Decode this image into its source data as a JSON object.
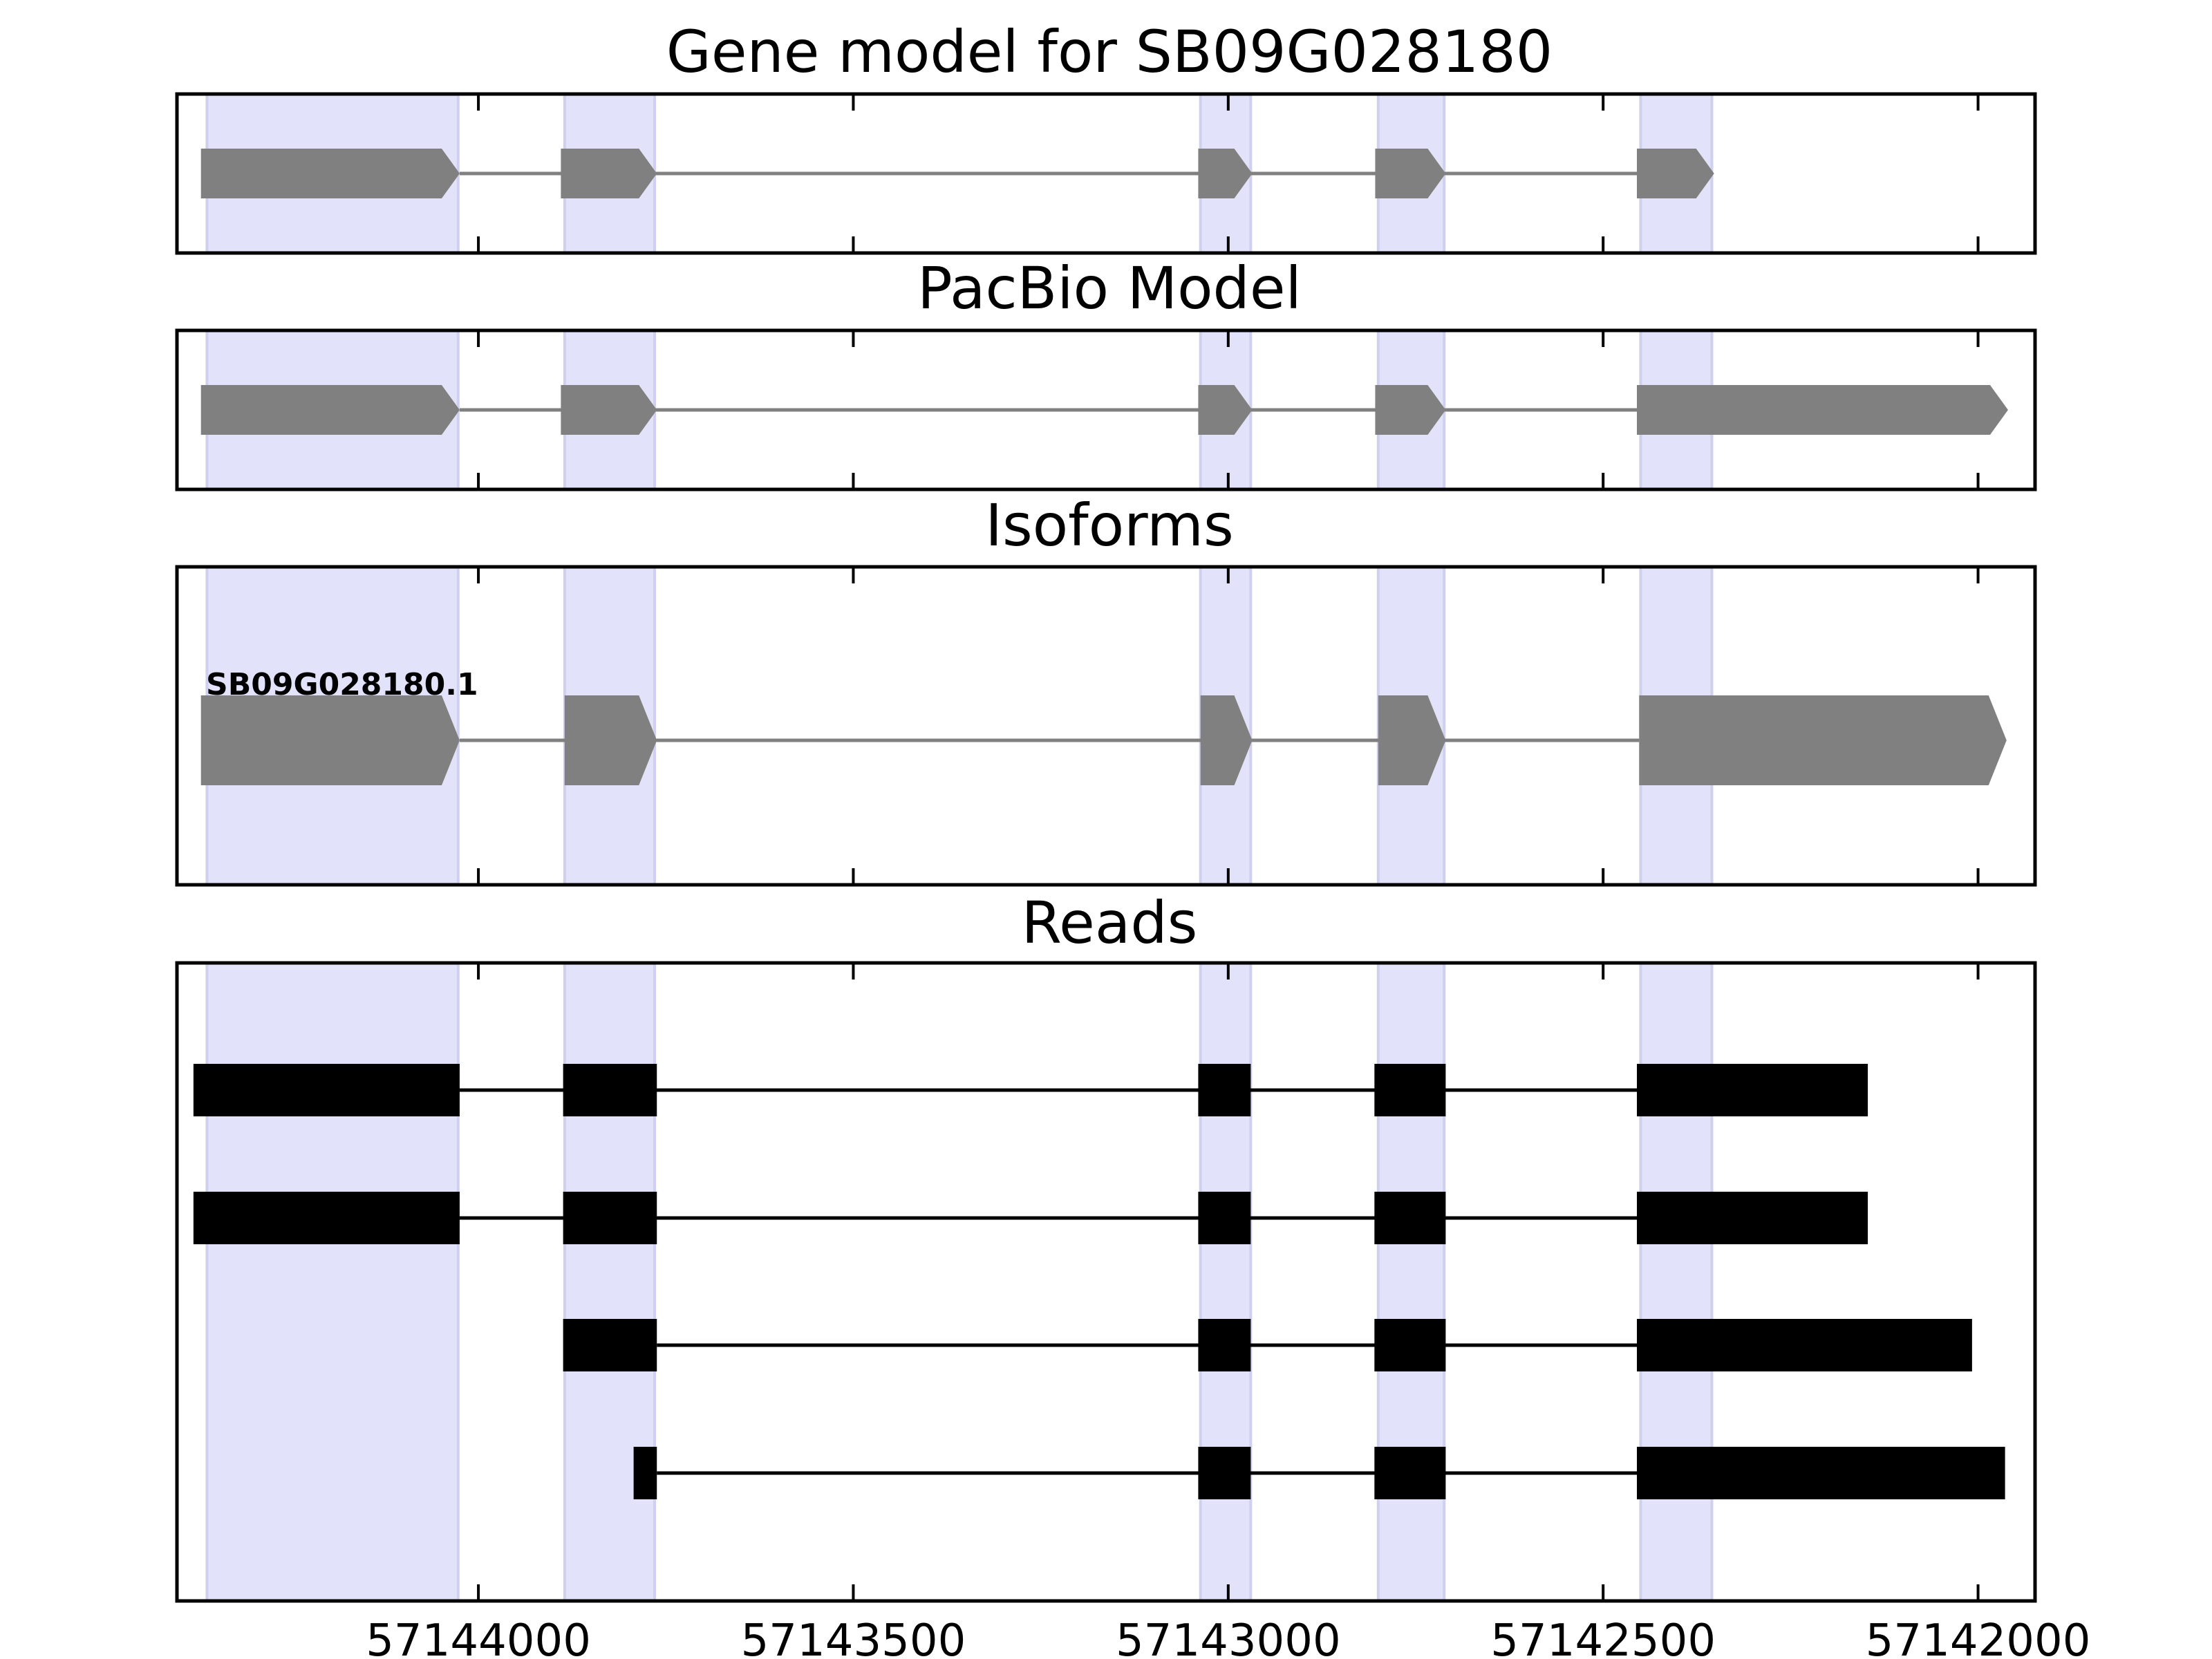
{
  "chart_data": {
    "type": "gene-structure",
    "gene_id": "SB09G028180",
    "x_axis": {
      "reversed": true,
      "xlim": [
        57144402,
        57141924
      ],
      "ticks": [
        57144000,
        57143500,
        57143000,
        57142500,
        57142000
      ],
      "tick_labels": [
        "57144000",
        "57143500",
        "57143000",
        "57142500",
        "57142000"
      ]
    },
    "exon_highlights": [
      [
        57144362,
        57144027
      ],
      [
        57143885,
        57143765
      ],
      [
        57143037,
        57142970
      ],
      [
        57142800,
        57142712
      ],
      [
        57142450,
        57142355
      ]
    ],
    "panels": [
      {
        "title": "Gene model for SB09G028180",
        "kind": "model",
        "transcripts": [
          {
            "label": "",
            "exons": [
              [
                57144370,
                57144025
              ],
              [
                57143890,
                57143762
              ],
              [
                57143040,
                57142968
              ],
              [
                57142804,
                57142710
              ],
              [
                57142455,
                57142352
              ]
            ]
          }
        ]
      },
      {
        "title": "PacBio Model",
        "kind": "model",
        "transcripts": [
          {
            "label": "",
            "exons": [
              [
                57144370,
                57144025
              ],
              [
                57143890,
                57143762
              ],
              [
                57143040,
                57142968
              ],
              [
                57142804,
                57142710
              ],
              [
                57142455,
                57141960
              ]
            ]
          }
        ]
      },
      {
        "title": "Isoforms",
        "kind": "model",
        "transcripts": [
          {
            "label": "SB09G028180.1",
            "exons": [
              [
                57144370,
                57144025
              ],
              [
                57143885,
                57143762
              ],
              [
                57143037,
                57142968
              ],
              [
                57142800,
                57142710
              ],
              [
                57142452,
                57141962
              ]
            ]
          }
        ]
      },
      {
        "title": "Reads",
        "kind": "reads",
        "reads": [
          {
            "exons": [
              [
                57144380,
                57144025
              ],
              [
                57143887,
                57143762
              ],
              [
                57143040,
                57142970
              ],
              [
                57142805,
                57142710
              ],
              [
                57142455,
                57142147
              ]
            ]
          },
          {
            "exons": [
              [
                57144380,
                57144025
              ],
              [
                57143887,
                57143762
              ],
              [
                57143040,
                57142970
              ],
              [
                57142805,
                57142710
              ],
              [
                57142455,
                57142147
              ]
            ]
          },
          {
            "exons": [
              [
                57143887,
                57143762
              ],
              [
                57143040,
                57142970
              ],
              [
                57142805,
                57142710
              ],
              [
                57142455,
                57142008
              ]
            ]
          },
          {
            "exons": [
              [
                57143793,
                57143762
              ],
              [
                57143040,
                57142970
              ],
              [
                57142805,
                57142710
              ],
              [
                57142455,
                57141964
              ]
            ]
          }
        ]
      }
    ],
    "colors": {
      "highlight": "#e2e2fa",
      "highlight_edge": "#cfcff0",
      "model_exon": "#808080",
      "model_intron": "#808080",
      "read": "#000000",
      "frame": "#000000"
    }
  }
}
